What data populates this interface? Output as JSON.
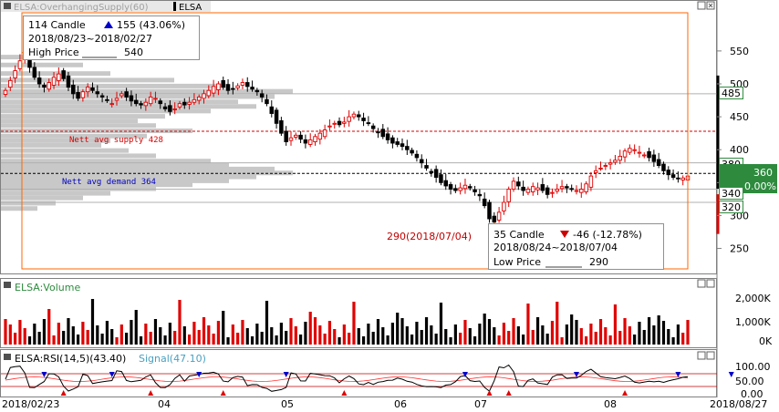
{
  "colors": {
    "up": "#e00000",
    "down": "#000000",
    "supply_line": "#d80000",
    "demand_line": "#000000",
    "volume_profile": "#c8c8c8",
    "range_box": "#ff6600",
    "rsi": "#000000",
    "signal": "#ff3030",
    "panel_title_bg": "#e8e8e8",
    "last_price_bg": "#2e8b3e"
  },
  "header": {
    "title_panel": "ELSA:OverhangingSupply(60)",
    "title_symbol": "ELSA"
  },
  "main_panel": {
    "price_labels": {
      "p485": "485",
      "p380": "380",
      "p360": "360",
      "p340": "340",
      "p320": "320",
      "last_change": "0.00%"
    },
    "supply_label": "Nett avg supply 428",
    "demand_label": "Nett avg demand 364",
    "low_annotation": "290(2018/07/04)",
    "info_top": {
      "count": "114 Candle",
      "change": "155 (43.06%)",
      "range": "2018/08/23~2018/02/27",
      "label": "High Price",
      "value": "540"
    },
    "info_bottom": {
      "count": "35 Candle",
      "change": "-46 (-12.78%)",
      "range": "2018/08/24~2018/07/04",
      "label": "Low Price",
      "value": "290"
    }
  },
  "volume_panel": {
    "title": "ELSA:Volume",
    "ticks": [
      "2,000K",
      "1,000K",
      "0K"
    ]
  },
  "rsi_panel": {
    "title": "ELSA:RSI(14,5)(43.40)",
    "signal_title": "Signal(47.10)",
    "ticks": [
      "100.00",
      "50.00",
      "0.00"
    ]
  },
  "x_axis": {
    "labels": [
      "2018/02/23",
      "04",
      "05",
      "06",
      "07",
      "08",
      "2018/08/27"
    ]
  },
  "chart_data": {
    "type": "candlestick",
    "price_axis": {
      "ticks": [
        250,
        300,
        350,
        400,
        450,
        500,
        550
      ],
      "range": [
        212,
        608
      ]
    },
    "supply_avg": 428,
    "demand_avg": 364,
    "lines": [
      485,
      380,
      340,
      320
    ],
    "last_price": 360,
    "high": {
      "price": 540
    },
    "low": {
      "price": 290,
      "date": "2018/07/04"
    },
    "closes": [
      490,
      505,
      520,
      535,
      540,
      525,
      510,
      500,
      495,
      502,
      510,
      515,
      508,
      495,
      485,
      478,
      488,
      495,
      490,
      485,
      480,
      475,
      470,
      478,
      485,
      480,
      474,
      470,
      468,
      472,
      480,
      478,
      470,
      462,
      458,
      462,
      470,
      468,
      472,
      476,
      480,
      485,
      490,
      496,
      500,
      495,
      490,
      492,
      497,
      502,
      496,
      492,
      488,
      480,
      470,
      455,
      440,
      425,
      412,
      418,
      422,
      416,
      410,
      415,
      420,
      425,
      430,
      436,
      440,
      438,
      442,
      450,
      454,
      450,
      444,
      440,
      432,
      426,
      420,
      415,
      410,
      408,
      405,
      400,
      395,
      388,
      380,
      372,
      365,
      358,
      350,
      345,
      340,
      338,
      342,
      346,
      342,
      336,
      330,
      315,
      295,
      290,
      305,
      320,
      340,
      352,
      345,
      338,
      340,
      344,
      342,
      338,
      332,
      335,
      340,
      344,
      342,
      340,
      338,
      340,
      348,
      360,
      368,
      372,
      376,
      380,
      384,
      390,
      398,
      402,
      400,
      396,
      392,
      388,
      382,
      376,
      368,
      362,
      358,
      356,
      357,
      360
    ]
  }
}
